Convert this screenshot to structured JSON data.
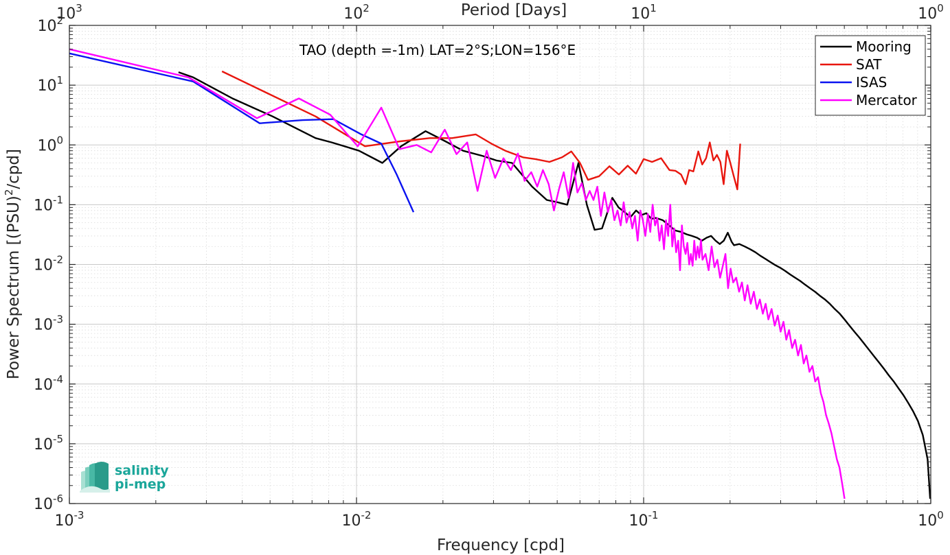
{
  "chart_data": {
    "type": "line",
    "title": "TAO (depth =-1m) LAT=2°S;LON=156°E",
    "xlabel": "Frequency [cpd]",
    "ylabel": "Power Spectrum [(PSU)",
    "ylabel_sup": "2",
    "ylabel_tail": "/cpd]",
    "top_xlabel": "Period [Days]",
    "x_scale": "log",
    "y_scale": "log",
    "xlim": [
      0.001,
      1
    ],
    "ylim": [
      1e-06,
      100
    ],
    "grid": true,
    "legend_position": "top-right",
    "x_ticks": [
      {
        "base": "10",
        "exp": "-3",
        "value": 0.001
      },
      {
        "base": "10",
        "exp": "-2",
        "value": 0.01
      },
      {
        "base": "10",
        "exp": "-1",
        "value": 0.1
      },
      {
        "base": "10",
        "exp": "0",
        "value": 1
      }
    ],
    "y_ticks": [
      {
        "base": "10",
        "exp": "2",
        "value": 100
      },
      {
        "base": "10",
        "exp": "1",
        "value": 10
      },
      {
        "base": "10",
        "exp": "0",
        "value": 1
      },
      {
        "base": "10",
        "exp": "-1",
        "value": 0.1
      },
      {
        "base": "10",
        "exp": "-2",
        "value": 0.01
      },
      {
        "base": "10",
        "exp": "-3",
        "value": 0.001
      },
      {
        "base": "10",
        "exp": "-4",
        "value": 0.0001
      },
      {
        "base": "10",
        "exp": "-5",
        "value": 1e-05
      },
      {
        "base": "10",
        "exp": "-6",
        "value": 1e-06
      }
    ],
    "top_ticks": [
      {
        "base": "10",
        "exp": "3",
        "value": 0.001
      },
      {
        "base": "10",
        "exp": "2",
        "value": 0.01
      },
      {
        "base": "10",
        "exp": "1",
        "value": 0.1
      },
      {
        "base": "10",
        "exp": "0",
        "value": 1
      }
    ],
    "series": [
      {
        "name": "Mooring",
        "color": "#000000",
        "x": [
          0.0024,
          0.0027,
          0.0037,
          0.0051,
          0.0072,
          0.0082,
          0.0102,
          0.0123,
          0.0143,
          0.0174,
          0.0204,
          0.0235,
          0.0276,
          0.0307,
          0.0348,
          0.0409,
          0.046,
          0.0501,
          0.0542,
          0.0593,
          0.0634,
          0.0675,
          0.0716,
          0.0778,
          0.0818,
          0.0859,
          0.09,
          0.0941,
          0.0982,
          0.1023,
          0.1064,
          0.1105,
          0.1166,
          0.1227,
          0.1289,
          0.135,
          0.1411,
          0.1473,
          0.1534,
          0.1595,
          0.1657,
          0.1718,
          0.178,
          0.1841,
          0.1902,
          0.1964,
          0.2025,
          0.2064,
          0.2154,
          0.225,
          0.235,
          0.245,
          0.255,
          0.265,
          0.276,
          0.287,
          0.299,
          0.311,
          0.324,
          0.337,
          0.351,
          0.365,
          0.38,
          0.395,
          0.411,
          0.428,
          0.445,
          0.463,
          0.482,
          0.501,
          0.521,
          0.542,
          0.564,
          0.587,
          0.61,
          0.635,
          0.66,
          0.687,
          0.714,
          0.743,
          0.772,
          0.803,
          0.835,
          0.868,
          0.902,
          0.938,
          0.975,
          0.995
        ],
        "y": [
          16.5,
          13.5,
          6.0,
          3.0,
          1.3,
          1.1,
          0.8,
          0.5,
          0.95,
          1.7,
          1.15,
          0.8,
          0.65,
          0.55,
          0.5,
          0.2,
          0.12,
          0.11,
          0.1,
          0.5,
          0.1,
          0.038,
          0.04,
          0.13,
          0.09,
          0.075,
          0.062,
          0.08,
          0.067,
          0.072,
          0.058,
          0.06,
          0.055,
          0.045,
          0.037,
          0.035,
          0.032,
          0.03,
          0.028,
          0.025,
          0.028,
          0.03,
          0.025,
          0.022,
          0.025,
          0.034,
          0.024,
          0.021,
          0.022,
          0.02,
          0.018,
          0.016,
          0.014,
          0.0125,
          0.011,
          0.0098,
          0.0088,
          0.0078,
          0.0068,
          0.006,
          0.0053,
          0.0046,
          0.004,
          0.0035,
          0.003,
          0.0026,
          0.0022,
          0.0018,
          0.0015,
          0.0012,
          0.00095,
          0.00075,
          0.0006,
          0.00047,
          0.00037,
          0.00029,
          0.00023,
          0.00018,
          0.00014,
          0.00011,
          8.5e-05,
          6.5e-05,
          4.8e-05,
          3.5e-05,
          2.4e-05,
          1.4e-05,
          5.5e-06,
          1.2e-06
        ]
      },
      {
        "name": "SAT",
        "color": "#e8160e",
        "x": [
          0.0034,
          0.0072,
          0.0107,
          0.0142,
          0.018,
          0.0215,
          0.026,
          0.0295,
          0.033,
          0.038,
          0.042,
          0.047,
          0.052,
          0.056,
          0.06,
          0.064,
          0.07,
          0.076,
          0.082,
          0.088,
          0.094,
          0.1,
          0.107,
          0.115,
          0.123,
          0.129,
          0.135,
          0.14,
          0.144,
          0.149,
          0.155,
          0.16,
          0.165,
          0.17,
          0.175,
          0.18,
          0.185,
          0.19,
          0.195,
          0.2,
          0.206,
          0.212,
          0.217
        ],
        "y": [
          17.0,
          3.0,
          0.95,
          1.15,
          1.3,
          1.3,
          1.5,
          1.05,
          0.8,
          0.62,
          0.58,
          0.52,
          0.62,
          0.78,
          0.5,
          0.26,
          0.3,
          0.44,
          0.32,
          0.45,
          0.33,
          0.58,
          0.52,
          0.6,
          0.38,
          0.37,
          0.32,
          0.22,
          0.38,
          0.36,
          0.78,
          0.47,
          0.6,
          1.1,
          0.55,
          0.68,
          0.52,
          0.22,
          0.8,
          0.52,
          0.3,
          0.18,
          1.05
        ]
      },
      {
        "name": "ISAS",
        "color": "#0a12f0",
        "x": [
          0.001,
          0.0027,
          0.0046,
          0.0065,
          0.0083,
          0.0104,
          0.0122,
          0.0138,
          0.0158
        ],
        "y": [
          34.0,
          11.5,
          2.3,
          2.6,
          2.7,
          1.5,
          1.05,
          0.32,
          0.075
        ]
      },
      {
        "name": "Mercator",
        "color": "#ff00ff",
        "x": [
          0.001,
          0.0026,
          0.0045,
          0.0063,
          0.0081,
          0.0101,
          0.0122,
          0.0141,
          0.0162,
          0.0182,
          0.0203,
          0.0223,
          0.0243,
          0.0264,
          0.0284,
          0.0304,
          0.0325,
          0.0345,
          0.0365,
          0.0385,
          0.0406,
          0.0426,
          0.0446,
          0.0467,
          0.0487,
          0.0507,
          0.0527,
          0.0548,
          0.0568,
          0.0588,
          0.0609,
          0.0629,
          0.0649,
          0.0669,
          0.069,
          0.071,
          0.073,
          0.0751,
          0.0771,
          0.0791,
          0.0811,
          0.0832,
          0.0852,
          0.0872,
          0.0893,
          0.0913,
          0.0933,
          0.0953,
          0.0974,
          0.0994,
          0.1014,
          0.1035,
          0.1055,
          0.1075,
          0.1096,
          0.1116,
          0.1136,
          0.1156,
          0.1177,
          0.1197,
          0.1217,
          0.1238,
          0.1258,
          0.1278,
          0.1298,
          0.1319,
          0.1339,
          0.1359,
          0.138,
          0.14,
          0.142,
          0.1441,
          0.1461,
          0.1481,
          0.1501,
          0.1522,
          0.1542,
          0.1562,
          0.1583,
          0.1603,
          0.1643,
          0.1684,
          0.1725,
          0.1765,
          0.1806,
          0.1846,
          0.1887,
          0.1927,
          0.1968,
          0.2009,
          0.205,
          0.21,
          0.215,
          0.22,
          0.225,
          0.23,
          0.236,
          0.242,
          0.248,
          0.254,
          0.26,
          0.266,
          0.272,
          0.279,
          0.286,
          0.293,
          0.3,
          0.307,
          0.314,
          0.321,
          0.329,
          0.337,
          0.345,
          0.353,
          0.361,
          0.369,
          0.378,
          0.387,
          0.396,
          0.405,
          0.414,
          0.423,
          0.432,
          0.441,
          0.451,
          0.461,
          0.471,
          0.481,
          0.491,
          0.501
        ],
        "y": [
          40.0,
          13.5,
          2.8,
          6.0,
          3.2,
          0.95,
          4.2,
          0.85,
          1.0,
          0.75,
          1.8,
          0.7,
          1.1,
          0.17,
          0.8,
          0.28,
          0.6,
          0.38,
          0.72,
          0.25,
          0.35,
          0.2,
          0.38,
          0.22,
          0.08,
          0.18,
          0.35,
          0.13,
          0.5,
          0.16,
          0.23,
          0.12,
          0.17,
          0.12,
          0.2,
          0.065,
          0.16,
          0.075,
          0.12,
          0.055,
          0.08,
          0.045,
          0.11,
          0.05,
          0.075,
          0.04,
          0.065,
          0.025,
          0.08,
          0.055,
          0.03,
          0.07,
          0.035,
          0.1,
          0.045,
          0.06,
          0.025,
          0.045,
          0.018,
          0.055,
          0.03,
          0.1,
          0.02,
          0.04,
          0.016,
          0.025,
          0.008,
          0.045,
          0.02,
          0.015,
          0.023,
          0.01,
          0.015,
          0.0095,
          0.025,
          0.012,
          0.02,
          0.013,
          0.026,
          0.012,
          0.015,
          0.008,
          0.02,
          0.009,
          0.012,
          0.006,
          0.0095,
          0.015,
          0.004,
          0.0085,
          0.005,
          0.006,
          0.0035,
          0.005,
          0.0025,
          0.0045,
          0.0022,
          0.0035,
          0.0018,
          0.0026,
          0.0015,
          0.0022,
          0.0012,
          0.0018,
          0.00095,
          0.0014,
          0.00075,
          0.0011,
          0.00055,
          0.0008,
          0.0004,
          0.00055,
          0.0003,
          0.00045,
          0.00022,
          0.0003,
          0.00016,
          0.0002,
          0.00011,
          0.00013,
          7e-05,
          5e-05,
          3e-05,
          2.2e-05,
          1.5e-05,
          9e-06,
          5.5e-06,
          4e-06,
          2.2e-06,
          1.2e-06
        ]
      }
    ]
  },
  "logo": {
    "line1": "salinity",
    "line2": "pi-mep"
  }
}
